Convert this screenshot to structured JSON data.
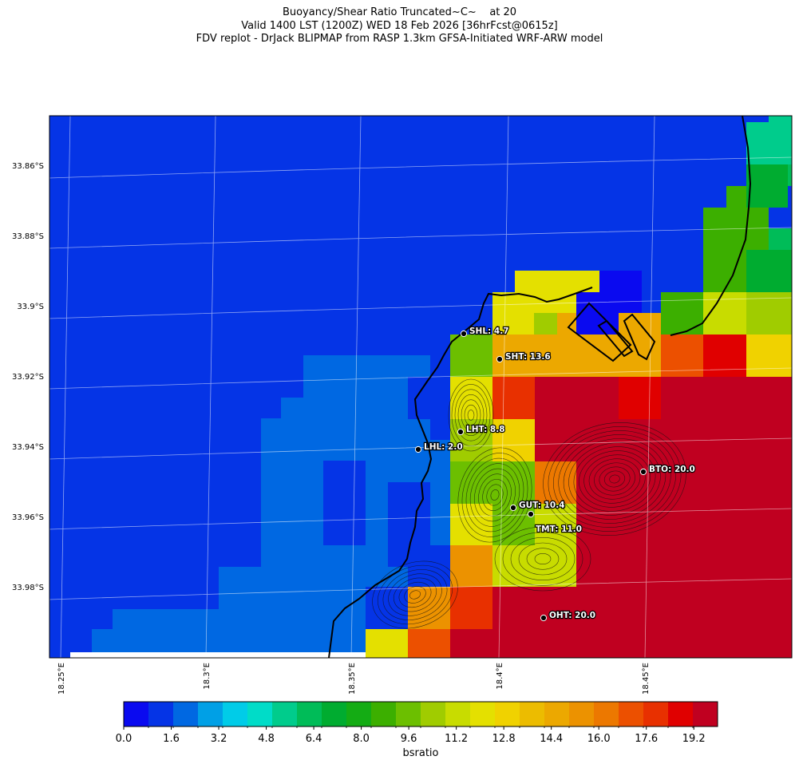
{
  "title": {
    "line1": "Buoyancy/Shear Ratio Truncated~C~    at 20",
    "line2": "Valid 1400 LST (1200Z) WED 18 Feb 2026 [36hrFcst@0615z]",
    "line3": "FDV replot - DrJack BLIPMAP from RASP 1.3km GFSA-Initiated WRF-ARW model"
  },
  "lat_labels": [
    "33.86°S",
    "33.88°S",
    "33.9°S",
    "33.92°S",
    "33.94°S",
    "33.96°S",
    "33.98°S"
  ],
  "lon_labels": [
    "18.25°E",
    "18.3°E",
    "18.35°E",
    "18.4°E",
    "18.45°E"
  ],
  "colorbar": {
    "label": "bsratio",
    "ticks": [
      "0.0",
      "1.6",
      "3.2",
      "4.8",
      "6.4",
      "8.0",
      "9.6",
      "11.2",
      "12.8",
      "14.4",
      "16.0",
      "17.6",
      "19.2"
    ],
    "colors": [
      "#0a0af0",
      "#0534e6",
      "#0068e2",
      "#00a0e6",
      "#00cce8",
      "#00dcc8",
      "#00cc8c",
      "#00bc58",
      "#00ac30",
      "#14ac14",
      "#3caf00",
      "#6cbf00",
      "#a0cc00",
      "#c8dc00",
      "#e4e000",
      "#f0d200",
      "#ecbc00",
      "#eca800",
      "#ec9200",
      "#ec7800",
      "#ec5000",
      "#e83000",
      "#e00000",
      "#c00020"
    ],
    "min": 0,
    "max": 20
  },
  "stations": [
    {
      "id": "SHL",
      "label": "SHL: 4.7"
    },
    {
      "id": "SHT",
      "label": "SHT: 13.6"
    },
    {
      "id": "LHT",
      "label": "LHT: 8.8"
    },
    {
      "id": "LHL",
      "label": "LHL: 2.0"
    },
    {
      "id": "BTO",
      "label": "BTO: 20.0"
    },
    {
      "id": "GUT",
      "label": "GUT: 10.4"
    },
    {
      "id": "TMT",
      "label": "TMT: 11.0"
    },
    {
      "id": "OHT",
      "label": "OHT: 20.0"
    }
  ]
}
